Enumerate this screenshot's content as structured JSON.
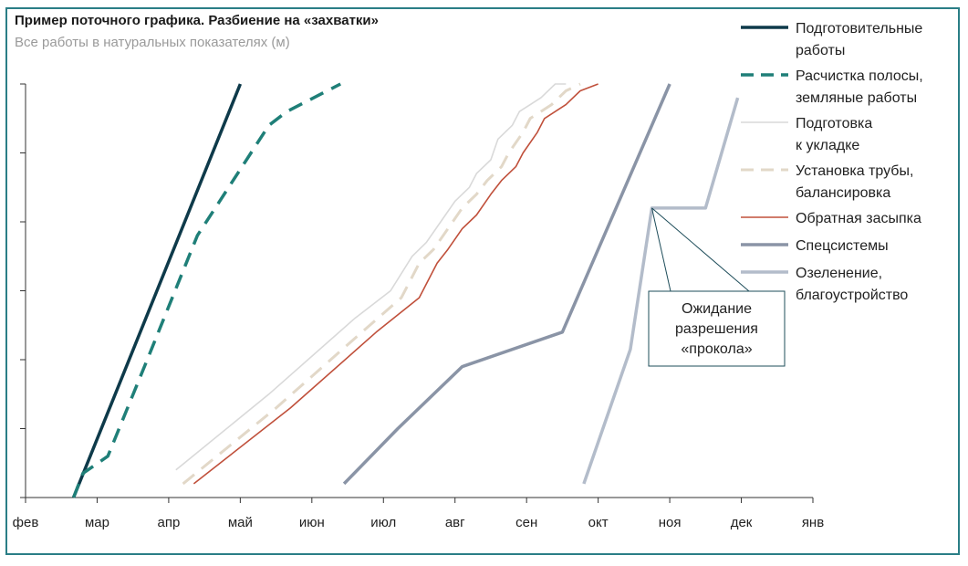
{
  "chart_data": {
    "type": "line",
    "title": "Пример поточного графика. Разбиение на «захватки»",
    "subtitle": "Все работы в натуральных показателях (м)",
    "x_ticks": [
      "фев",
      "мар",
      "апр",
      "май",
      "июн",
      "июл",
      "авг",
      "сен",
      "окт",
      "ноя",
      "дек",
      "янв"
    ],
    "xlim": [
      0,
      11
    ],
    "ylim": [
      0,
      6
    ],
    "y_ticks": [
      0,
      1,
      2,
      3,
      4,
      5,
      6
    ],
    "grid": false,
    "legend_position": "right",
    "series": [
      {
        "name": "Подготовительные работы",
        "color": "#0e3a4a",
        "dash": "solid",
        "width": 3.5,
        "points": [
          [
            0.67,
            0
          ],
          [
            3.0,
            6.0
          ]
        ]
      },
      {
        "name": "Расчистка полосы, земляные работы",
        "color": "#1f7f78",
        "dash": "long-dash",
        "width": 3.5,
        "points": [
          [
            0.67,
            0
          ],
          [
            0.8,
            0.35
          ],
          [
            1.15,
            0.6
          ],
          [
            1.7,
            2.0
          ],
          [
            2.4,
            3.8
          ],
          [
            3.4,
            5.4
          ],
          [
            3.65,
            5.6
          ],
          [
            4.4,
            6.0
          ]
        ]
      },
      {
        "name": "Подготовка к укладке",
        "color": "#d9d9d9",
        "dash": "solid",
        "width": 1.6,
        "points": [
          [
            2.1,
            0.4
          ],
          [
            3.4,
            1.5
          ],
          [
            4.6,
            2.6
          ],
          [
            5.1,
            3.0
          ],
          [
            5.4,
            3.5
          ],
          [
            5.6,
            3.7
          ],
          [
            5.8,
            4.0
          ],
          [
            6.0,
            4.3
          ],
          [
            6.2,
            4.5
          ],
          [
            6.3,
            4.7
          ],
          [
            6.5,
            4.9
          ],
          [
            6.6,
            5.2
          ],
          [
            6.8,
            5.4
          ],
          [
            6.9,
            5.6
          ],
          [
            7.2,
            5.8
          ],
          [
            7.4,
            6.0
          ],
          [
            7.55,
            6.0
          ]
        ]
      },
      {
        "name": "Установка трубы, балансировка",
        "color": "#e2d8c8",
        "dash": "long-dash",
        "width": 3,
        "points": [
          [
            2.2,
            0.2
          ],
          [
            3.5,
            1.3
          ],
          [
            4.7,
            2.4
          ],
          [
            5.25,
            2.9
          ],
          [
            5.5,
            3.4
          ],
          [
            5.7,
            3.6
          ],
          [
            5.9,
            3.9
          ],
          [
            6.1,
            4.2
          ],
          [
            6.3,
            4.4
          ],
          [
            6.45,
            4.6
          ],
          [
            6.65,
            4.8
          ],
          [
            6.75,
            5.0
          ],
          [
            6.95,
            5.3
          ],
          [
            7.05,
            5.5
          ],
          [
            7.35,
            5.7
          ],
          [
            7.55,
            5.9
          ],
          [
            7.75,
            6.0
          ]
        ]
      },
      {
        "name": "Обратная засыпка",
        "color": "#c0503b",
        "dash": "solid",
        "width": 1.6,
        "points": [
          [
            2.35,
            0.2
          ],
          [
            3.7,
            1.3
          ],
          [
            4.9,
            2.4
          ],
          [
            5.5,
            2.9
          ],
          [
            5.75,
            3.4
          ],
          [
            5.9,
            3.6
          ],
          [
            6.1,
            3.9
          ],
          [
            6.3,
            4.1
          ],
          [
            6.5,
            4.4
          ],
          [
            6.65,
            4.6
          ],
          [
            6.85,
            4.8
          ],
          [
            6.95,
            5.0
          ],
          [
            7.15,
            5.3
          ],
          [
            7.25,
            5.5
          ],
          [
            7.55,
            5.7
          ],
          [
            7.75,
            5.9
          ],
          [
            8.0,
            6.0
          ]
        ]
      },
      {
        "name": "Спецсистемы",
        "color": "#8a94a6",
        "dash": "solid",
        "width": 3.5,
        "points": [
          [
            4.45,
            0.2
          ],
          [
            5.2,
            1.0
          ],
          [
            6.1,
            1.9
          ],
          [
            7.5,
            2.4
          ],
          [
            9.0,
            6.0
          ]
        ]
      },
      {
        "name": "Озеленение, благоустройство",
        "color": "#b3bcca",
        "dash": "solid",
        "width": 3.5,
        "points": [
          [
            7.8,
            0.2
          ],
          [
            8.45,
            2.15
          ],
          [
            8.75,
            4.2
          ],
          [
            9.5,
            4.2
          ],
          [
            9.95,
            5.8
          ]
        ]
      }
    ],
    "annotation": {
      "lines": [
        "Ожидание",
        "разрешения",
        "«прокола»"
      ],
      "target": [
        8.75,
        4.2
      ]
    }
  },
  "legend_labels": [
    [
      "Подготовительные",
      "работы"
    ],
    [
      "Расчистка полосы,",
      "земляные работы"
    ],
    [
      "Подготовка",
      "к укладке"
    ],
    [
      "Установка трубы,",
      "балансировка"
    ],
    [
      "Обратная засыпка"
    ],
    [
      "Спецсистемы"
    ],
    [
      "Озеленение,",
      "благоустройство"
    ]
  ]
}
